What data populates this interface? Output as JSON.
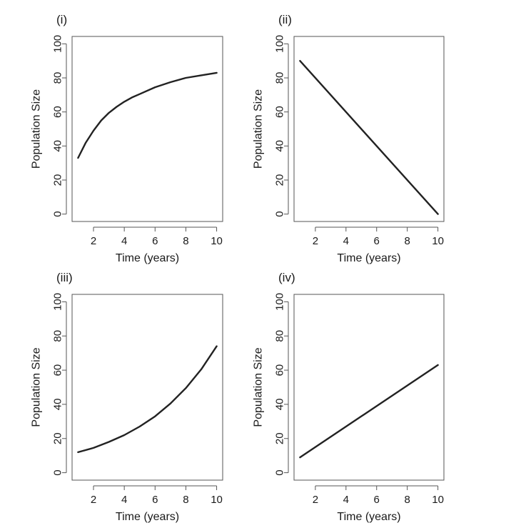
{
  "chart_data": [
    {
      "type": "line",
      "panel_label": "(i)",
      "xlabel": "Time (years)",
      "ylabel": "Population Size",
      "xlim": [
        1,
        10
      ],
      "ylim": [
        0,
        100
      ],
      "xticks": [
        2,
        4,
        6,
        8,
        10
      ],
      "yticks": [
        0,
        20,
        40,
        60,
        80,
        100
      ],
      "grid": false,
      "series": [
        {
          "x": [
            1,
            1.5,
            2,
            2.5,
            3,
            3.5,
            4,
            4.5,
            5,
            6,
            7,
            8,
            9,
            10
          ],
          "values": [
            33,
            42,
            49,
            55,
            59.5,
            63,
            66,
            68.5,
            70.5,
            74.5,
            77.5,
            80,
            81.5,
            83
          ]
        }
      ]
    },
    {
      "type": "line",
      "panel_label": "(ii)",
      "xlabel": "Time (years)",
      "ylabel": "Population Size",
      "xlim": [
        1,
        10
      ],
      "ylim": [
        0,
        100
      ],
      "xticks": [
        2,
        4,
        6,
        8,
        10
      ],
      "yticks": [
        0,
        20,
        40,
        60,
        80,
        100
      ],
      "grid": false,
      "series": [
        {
          "x": [
            1,
            10
          ],
          "values": [
            90,
            0
          ]
        }
      ]
    },
    {
      "type": "line",
      "panel_label": "(iii)",
      "xlabel": "Time (years)",
      "ylabel": "Population Size",
      "xlim": [
        1,
        10
      ],
      "ylim": [
        0,
        100
      ],
      "xticks": [
        2,
        4,
        6,
        8,
        10
      ],
      "yticks": [
        0,
        20,
        40,
        60,
        80,
        100
      ],
      "grid": false,
      "series": [
        {
          "x": [
            1,
            2,
            3,
            4,
            5,
            6,
            7,
            8,
            9,
            10
          ],
          "values": [
            12,
            14.5,
            18,
            22,
            27,
            33,
            40.5,
            49.5,
            60.5,
            74
          ]
        }
      ]
    },
    {
      "type": "line",
      "panel_label": "(iv)",
      "xlabel": "Time (years)",
      "ylabel": "Population Size",
      "xlim": [
        1,
        10
      ],
      "ylim": [
        0,
        100
      ],
      "xticks": [
        2,
        4,
        6,
        8,
        10
      ],
      "yticks": [
        0,
        20,
        40,
        60,
        80,
        100
      ],
      "grid": false,
      "series": [
        {
          "x": [
            1,
            10
          ],
          "values": [
            9,
            63
          ]
        }
      ]
    }
  ]
}
